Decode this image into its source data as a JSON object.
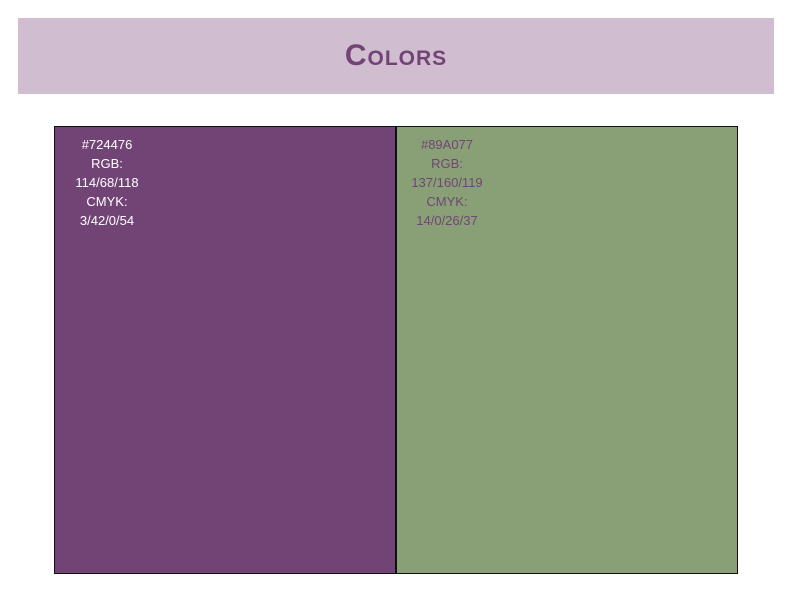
{
  "title": "Colors",
  "swatches": [
    {
      "hex_label": "#724476",
      "rgb_label": "RGB:",
      "rgb": "114/68/118",
      "cmyk_label": "CMYK:",
      "cmyk": "3/42/0/54",
      "color": "#724476",
      "text_color": "#ffffff"
    },
    {
      "hex_label": "#89A077",
      "rgb_label": "RGB:",
      "rgb": "137/160/119",
      "cmyk_label": "CMYK:",
      "cmyk": "14/0/26/37",
      "color": "#89a077",
      "text_color": "#724476"
    }
  ]
}
